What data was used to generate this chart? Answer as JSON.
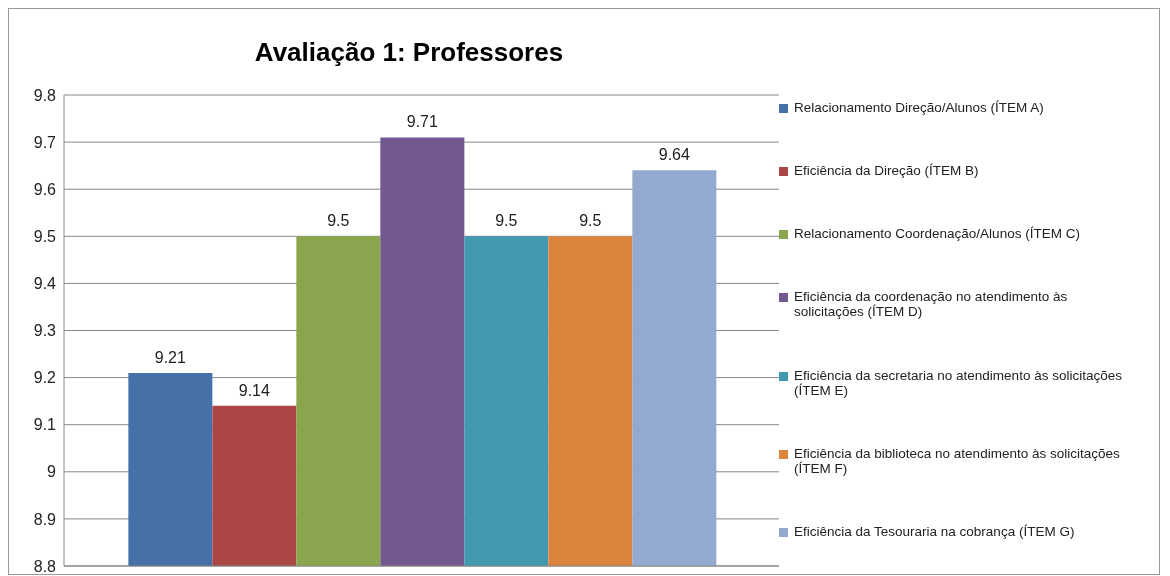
{
  "chart_data": {
    "type": "bar",
    "title": "Avaliação 1: Professores",
    "categories": [
      null
    ],
    "series": [
      {
        "name": "Relacionamento Direção/Alunos (ÍTEM A)",
        "color": "#4571a8",
        "values": [
          9.21
        ]
      },
      {
        "name": "Eficiência da Direção (ÍTEM B)",
        "color": "#aa4643",
        "values": [
          9.14
        ]
      },
      {
        "name": "Relacionamento Coordenação/Alunos (ÍTEM C)",
        "color": "#89a54e",
        "values": [
          9.5
        ]
      },
      {
        "name": "Eficiência da coordenação no atendimento às solicitações (ÍTEM D)",
        "color": "#71588f",
        "values": [
          9.71
        ]
      },
      {
        "name": "Eficiência da secretaria no atendimento às solicitações (ÍTEM E)",
        "color": "#4198af",
        "values": [
          9.5
        ]
      },
      {
        "name": "Eficiência da biblioteca no atendimento às solicitações (ÍTEM F)",
        "color": "#db843d",
        "values": [
          9.5
        ]
      },
      {
        "name": "Eficiência da Tesouraria na cobrança (ÍTEM G)",
        "color": "#93a9cf",
        "values": [
          9.64
        ]
      }
    ],
    "ylim": [
      8.8,
      9.8
    ],
    "yticks": [
      8.8,
      8.9,
      9,
      9.1,
      9.2,
      9.3,
      9.4,
      9.5,
      9.6,
      9.7,
      9.8
    ],
    "grid": "y",
    "legend": "right",
    "data_labels": true
  }
}
